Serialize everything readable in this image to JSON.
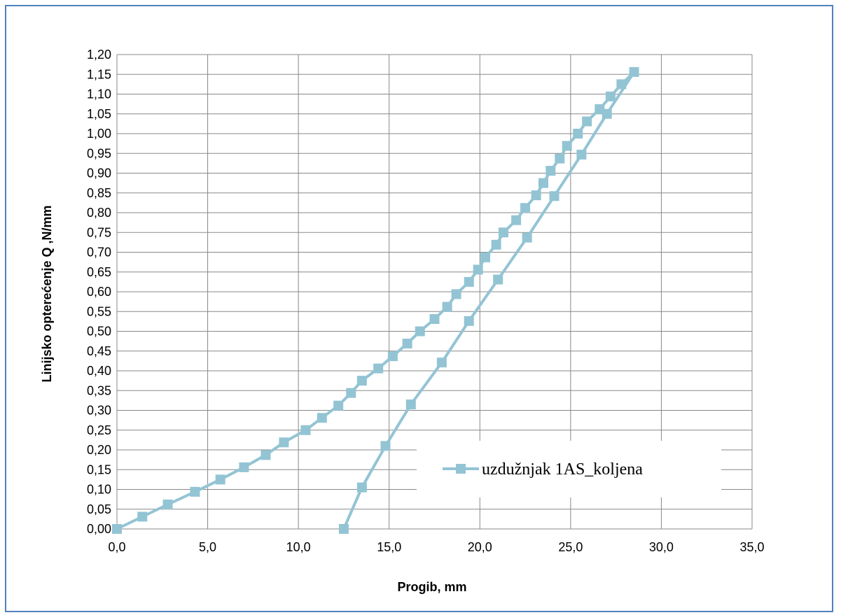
{
  "chart_data": {
    "type": "line",
    "xlabel": "Progib, mm",
    "ylabel": "Linijsko opterećenje Q  ,N/mm",
    "xlim": [
      0,
      35
    ],
    "ylim": [
      0,
      1.2
    ],
    "x_ticks": [
      "0,0",
      "5,0",
      "10,0",
      "15,0",
      "20,0",
      "25,0",
      "30,0",
      "35,0"
    ],
    "y_ticks": [
      "0,00",
      "0,05",
      "0,10",
      "0,15",
      "0,20",
      "0,25",
      "0,30",
      "0,35",
      "0,40",
      "0,45",
      "0,50",
      "0,55",
      "0,60",
      "0,65",
      "0,70",
      "0,75",
      "0,80",
      "0,85",
      "0,90",
      "0,95",
      "1,00",
      "1,05",
      "1,10",
      "1,15",
      "1,20"
    ],
    "grid": true,
    "legend_position": "bottom-right",
    "series": [
      {
        "name": "uzdužnjak 1AS_koljena",
        "color": "#93c4d4",
        "marker": "square",
        "points": [
          [
            0.0,
            0.0
          ],
          [
            1.4,
            0.031
          ],
          [
            2.8,
            0.062
          ],
          [
            4.3,
            0.094
          ],
          [
            5.7,
            0.125
          ],
          [
            7.0,
            0.156
          ],
          [
            8.2,
            0.187
          ],
          [
            9.2,
            0.219
          ],
          [
            10.4,
            0.25
          ],
          [
            11.3,
            0.281
          ],
          [
            12.2,
            0.312
          ],
          [
            12.9,
            0.344
          ],
          [
            13.5,
            0.375
          ],
          [
            14.4,
            0.406
          ],
          [
            15.2,
            0.437
          ],
          [
            16.0,
            0.469
          ],
          [
            16.7,
            0.5
          ],
          [
            17.5,
            0.531
          ],
          [
            18.2,
            0.562
          ],
          [
            18.7,
            0.594
          ],
          [
            19.4,
            0.625
          ],
          [
            19.9,
            0.656
          ],
          [
            20.3,
            0.687
          ],
          [
            20.9,
            0.719
          ],
          [
            21.3,
            0.75
          ],
          [
            22.0,
            0.781
          ],
          [
            22.5,
            0.812
          ],
          [
            23.1,
            0.844
          ],
          [
            23.5,
            0.875
          ],
          [
            23.9,
            0.906
          ],
          [
            24.4,
            0.937
          ],
          [
            24.8,
            0.969
          ],
          [
            25.4,
            1.0
          ],
          [
            25.9,
            1.031
          ],
          [
            26.6,
            1.062
          ],
          [
            27.2,
            1.094
          ],
          [
            27.8,
            1.125
          ],
          [
            28.5,
            1.156
          ],
          [
            27.0,
            1.05
          ],
          [
            25.6,
            0.947
          ],
          [
            24.1,
            0.842
          ],
          [
            22.6,
            0.737
          ],
          [
            21.0,
            0.631
          ],
          [
            19.4,
            0.526
          ],
          [
            17.9,
            0.421
          ],
          [
            16.2,
            0.315
          ],
          [
            14.8,
            0.21
          ],
          [
            13.5,
            0.105
          ],
          [
            12.5,
            0.0
          ]
        ]
      }
    ]
  }
}
